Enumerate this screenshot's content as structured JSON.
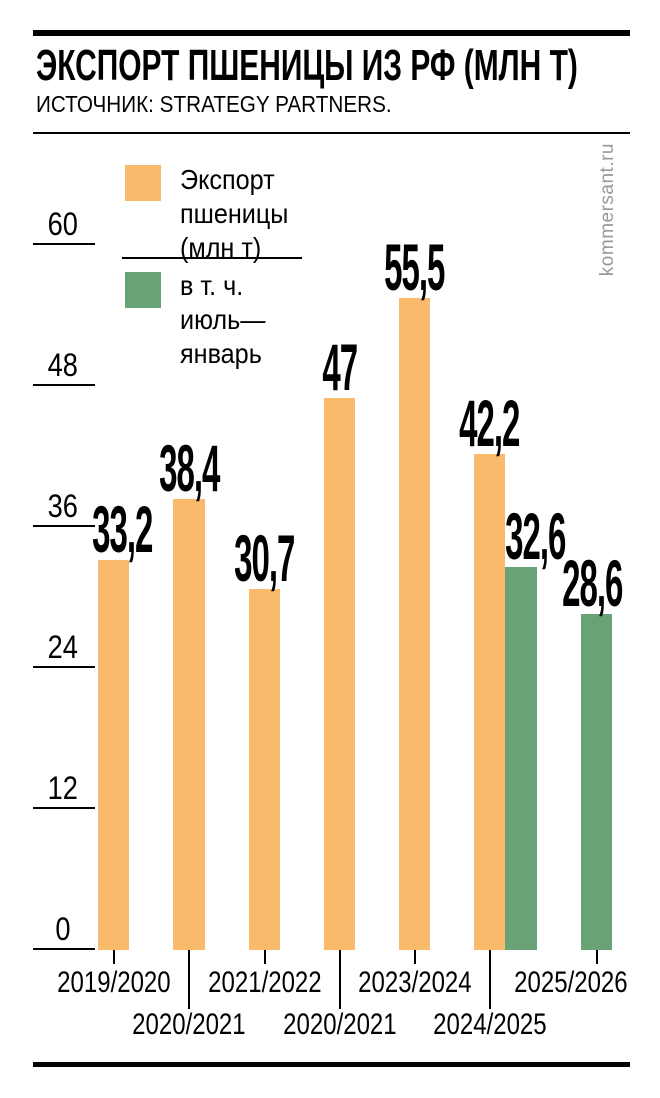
{
  "header": {
    "title": "ЭКСПОРТ ПШЕНИЦЫ ИЗ РФ (МЛН Т)",
    "source": "ИСТОЧНИК: STRATEGY PARTNERS."
  },
  "watermark": "kommersant.ru",
  "legend": {
    "items": [
      {
        "label": "Экспорт\nпшеницы\n(млн т)",
        "color": "#F9BA6B"
      },
      {
        "label": "в т. ч.\nиюль—\nянварь",
        "color": "#69A375"
      }
    ]
  },
  "chart_data": {
    "type": "bar",
    "title": "ЭКСПОРТ ПШЕНИЦЫ ИЗ РФ (МЛН Т)",
    "source": "ИСТОЧНИК: STRATEGY PARTNERS.",
    "ylabel": "млн т",
    "ylim": [
      0,
      60
    ],
    "yticks": [
      60,
      48,
      36,
      24,
      12,
      0
    ],
    "grid": false,
    "legend_position": "top-left",
    "series": [
      {
        "name": "Экспорт пшеницы (млн т)",
        "color": "#F9BA6B"
      },
      {
        "name": "в т. ч. июль—январь",
        "color": "#69A375"
      }
    ],
    "bars": [
      {
        "season": "2019/2020",
        "value": 33.2,
        "display": "33,2",
        "series": 0
      },
      {
        "season": "2020/2021",
        "value": 38.4,
        "display": "38,4",
        "series": 0
      },
      {
        "season": "2021/2022",
        "value": 30.7,
        "display": "30,7",
        "series": 0
      },
      {
        "season": "2020/2021",
        "value": 47,
        "display": "47",
        "series": 0
      },
      {
        "season": "2023/2024",
        "value": 55.5,
        "display": "55,5",
        "series": 0
      },
      {
        "season": "2024/2025",
        "value": 42.2,
        "display": "42,2",
        "series": 0
      },
      {
        "season": "",
        "value": 32.6,
        "display": "32,6",
        "series": 1
      },
      {
        "season": "2025/2026",
        "value": 28.6,
        "display": "28,6",
        "series": 1
      }
    ]
  }
}
